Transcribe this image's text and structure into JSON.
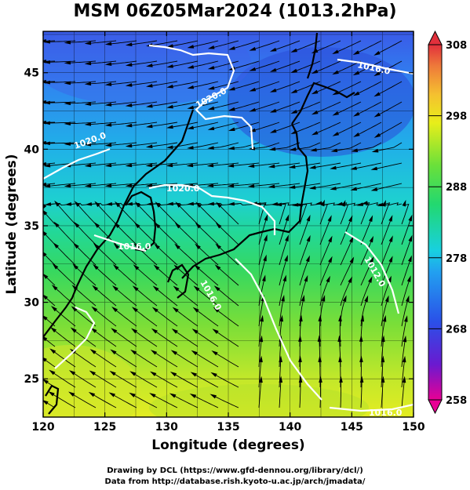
{
  "title": "MSM 06Z05Mar2024 (1013.2hPa)",
  "axes": {
    "x_label": "Longitude (degrees)",
    "y_label": "Latitude  (degrees)",
    "x_ticks": [
      "120",
      "125",
      "130",
      "135",
      "140",
      "145",
      "150"
    ],
    "y_ticks": [
      "25",
      "30",
      "35",
      "40",
      "45"
    ],
    "x_range": [
      120,
      150
    ],
    "y_range": [
      22.5,
      47.7
    ]
  },
  "colorbar": {
    "ticks": [
      "308",
      "298",
      "288",
      "278",
      "268",
      "258"
    ],
    "range": [
      258,
      308
    ],
    "colors": [
      "#e80094",
      "#3a1fd0",
      "#2a78f0",
      "#18c8e0",
      "#22d880",
      "#8ee030",
      "#f2f018",
      "#f5c030",
      "#ee7a3a",
      "#e2303c"
    ]
  },
  "contour_labels": [
    "1020.0",
    "1016.0",
    "1020.0",
    "1020.0",
    "1016.0",
    "1016.0",
    "1012.0",
    "1016.0"
  ],
  "credits": {
    "line1": "Drawing by DCL (https://www.gfd-dennou.org/library/dcl/)",
    "line2": "Data from http://database.rish.kyoto-u.ac.jp/arch/jmadata/"
  }
}
